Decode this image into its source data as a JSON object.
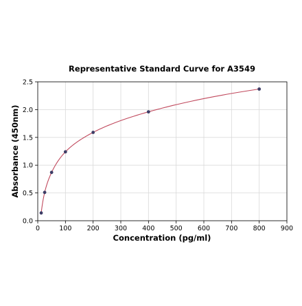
{
  "chart_data": {
    "type": "scatter",
    "title": "Representative Standard Curve for A3549",
    "xlabel": "Concentration (pg/ml)",
    "ylabel": "Absorbance (450nm)",
    "xlim": [
      0,
      900
    ],
    "ylim": [
      0,
      2.5
    ],
    "x_ticks": [
      0,
      100,
      200,
      300,
      400,
      500,
      600,
      700,
      800,
      900
    ],
    "y_ticks": [
      "0.0",
      "0.5",
      "1.0",
      "1.5",
      "2.0",
      "2.5"
    ],
    "grid": true,
    "series": [
      {
        "x": [
          12.5,
          25,
          50,
          100,
          200,
          400,
          800
        ],
        "y": [
          0.14,
          0.51,
          0.87,
          1.24,
          1.59,
          1.96,
          2.37
        ]
      }
    ],
    "fit_curve": {
      "type": "4PL",
      "color": "#c0485c"
    },
    "point_color": "#3d3d66"
  }
}
